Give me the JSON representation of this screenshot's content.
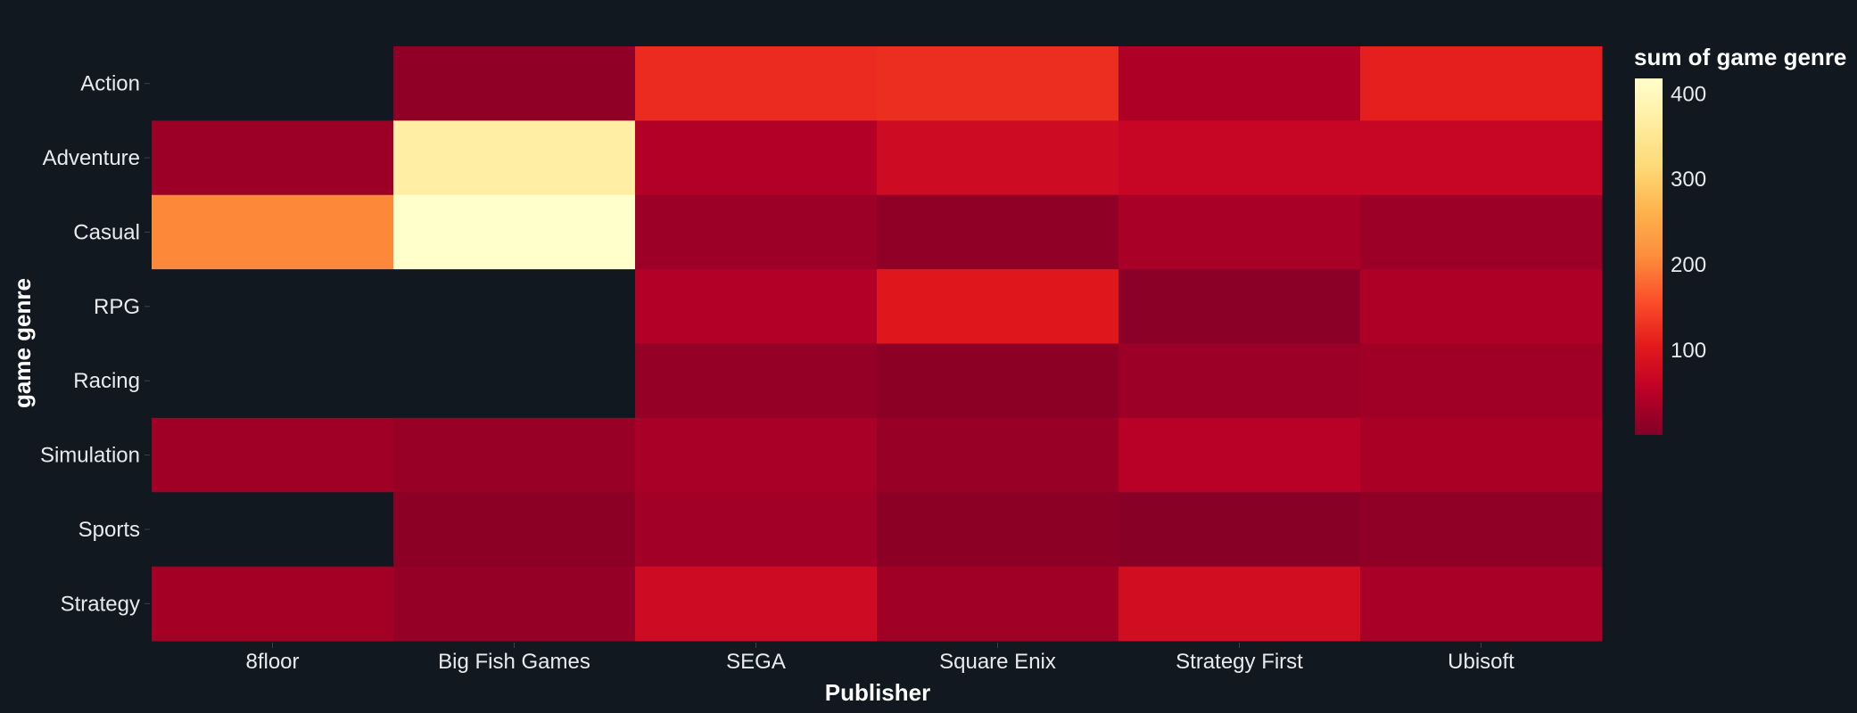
{
  "chart_data": {
    "type": "heatmap",
    "xlabel": "Publisher",
    "ylabel": "game genre",
    "x": [
      "8floor",
      "Big Fish Games",
      "SEGA",
      "Square Enix",
      "Strategy First",
      "Ubisoft"
    ],
    "y": [
      "Action",
      "Adventure",
      "Casual",
      "RPG",
      "Racing",
      "Simulation",
      "Sports",
      "Strategy"
    ],
    "z": [
      [
        null,
        15,
        122,
        125,
        40,
        110
      ],
      [
        25,
        370,
        45,
        75,
        65,
        65
      ],
      [
        205,
        418,
        25,
        15,
        35,
        25
      ],
      [
        null,
        null,
        45,
        100,
        10,
        40
      ],
      [
        null,
        null,
        18,
        12,
        25,
        28
      ],
      [
        28,
        22,
        35,
        22,
        50,
        38
      ],
      [
        null,
        12,
        30,
        12,
        8,
        15
      ],
      [
        32,
        18,
        75,
        28,
        80,
        35
      ]
    ],
    "colorbar": {
      "title": "sum of game genre",
      "zmin": 1,
      "zmax": 418,
      "ticks": [
        100,
        200,
        300,
        400
      ],
      "colorscale": [
        "#800026",
        "#bd0026",
        "#e31a1c",
        "#fc4e2a",
        "#fd8d3c",
        "#feb24c",
        "#fed976",
        "#ffeda0",
        "#ffffcc"
      ]
    },
    "missing_color": "#111820"
  }
}
